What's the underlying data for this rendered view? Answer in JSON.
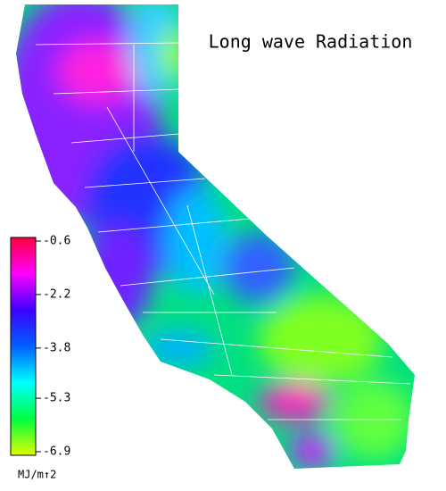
{
  "title": "Long wave Radiation",
  "colorbar": {
    "ticks": [
      -0.6,
      -2.2,
      -3.8,
      -5.3,
      -6.9
    ],
    "unit": "MJ/m↑2",
    "colors": [
      "#ff0040",
      "#ff00ff",
      "#3c00ff",
      "#0060ff",
      "#00ffff",
      "#00ff40",
      "#e0ff00"
    ]
  }
}
